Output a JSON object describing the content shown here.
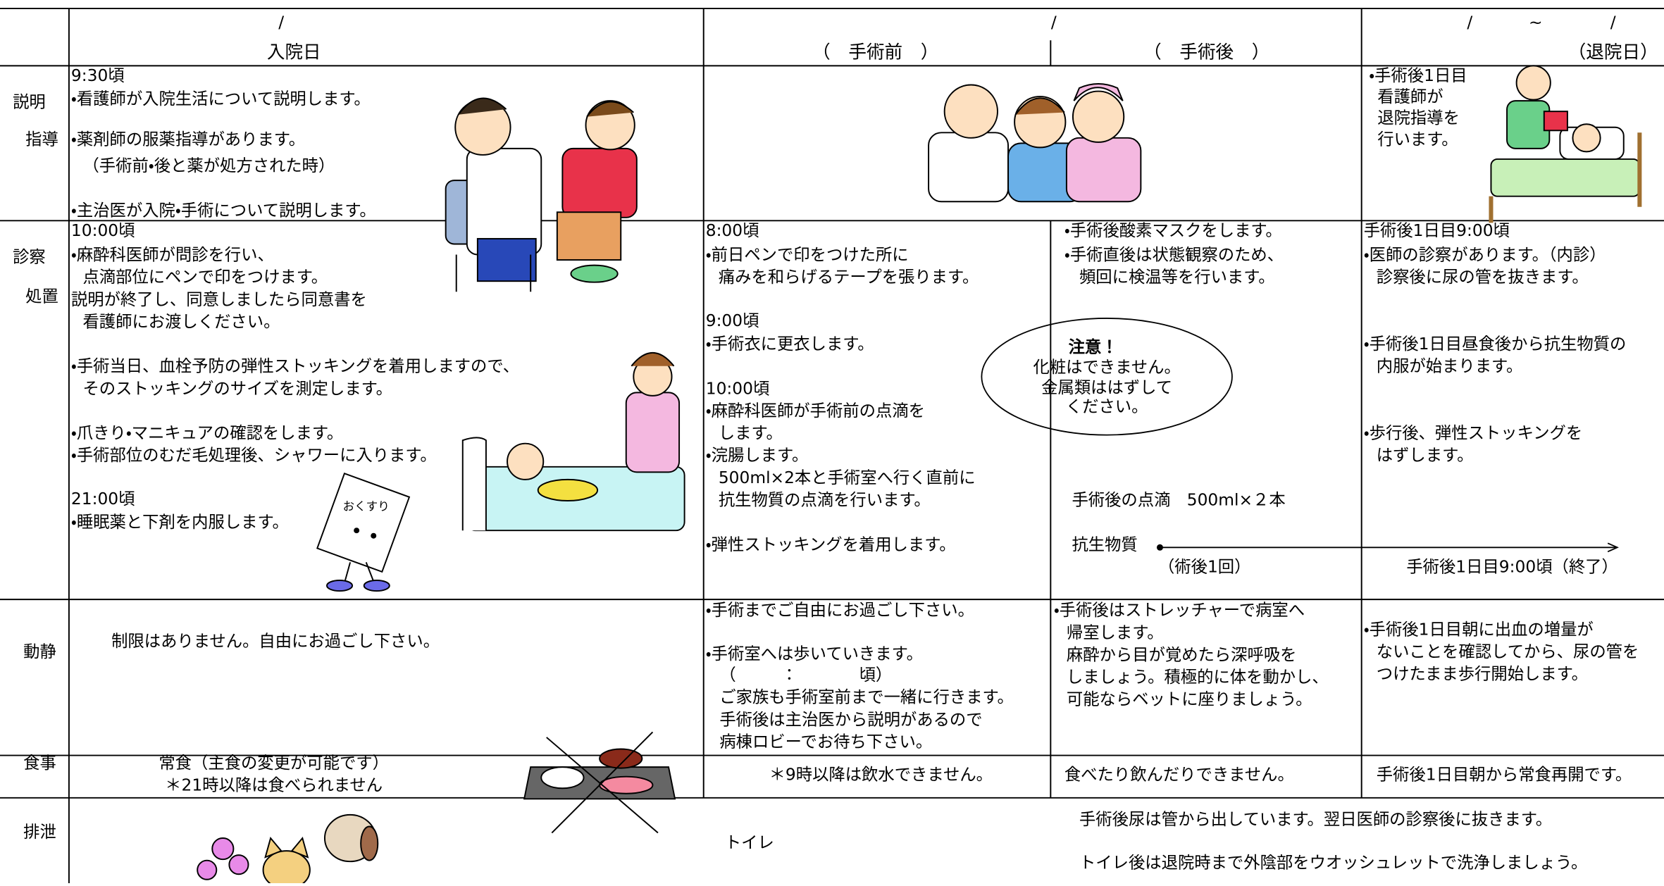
{
  "header": {
    "slash1": "/",
    "col1": "入院日",
    "slash2": "/",
    "col2a": "（　手術前　）",
    "col2b": "（　手術後　）",
    "slash3a": "/",
    "tilde": "~",
    "slash3b": "/",
    "col4": "（退院日）"
  },
  "explanation": {
    "label": [
      "説明",
      "指導"
    ],
    "c1": [
      "9:30頃",
      "・看護師が入院生活について説明します。",
      "・薬剤師の服薬指導があります。",
      "（手術前・後と薬が処方された時）",
      "・主治医が入院・手術について説明します。"
    ],
    "c4": [
      "・手術後1日目",
      "看護師が",
      "退院指導を",
      "行います。"
    ]
  },
  "examination": {
    "label": [
      "診察",
      "処置"
    ],
    "c1": [
      "10:00頃",
      "・麻酔科医師が問診を行い、",
      "点滴部位にペンで印をつけます。",
      "説明が終了し、同意しましたら同意書を",
      "看護師にお渡しください。",
      "・手術当日、血栓予防の弾性ストッキングを着用しますので、",
      "そのストッキングのサイズを測定します。",
      "・爪きり・マニキュアの確認をします。",
      "・手術部位のむだ毛処理後、シャワーに入ります。",
      "21:00頃",
      "・睡眠薬と下剤を内服します。"
    ],
    "sign": "おくすり",
    "c2": [
      "8:00頃",
      "・前日ペンで印をつけた所に",
      "痛みを和らげるテープを張ります。",
      "9:00頃",
      "・手術衣に更衣します。",
      "10:00頃",
      "・麻酔科医師が手術前の点滴を",
      "します。",
      "・浣腸します。",
      "500ml×2本と手術室へ行く直前に",
      "抗生物質の点滴を行います。",
      "・弾性ストッキングを着用します。"
    ],
    "c3": [
      "・手術後酸素マスクをします。",
      "・手術直後は状態観察のため、",
      "頻回に検温等を行います。"
    ],
    "note": [
      "注意！",
      "化粧はできません。",
      "金属類ははずして",
      "ください。"
    ],
    "drip": "手術後の点滴　500ml×２本",
    "antibiotic": "抗生物質",
    "once": "（術後1回）",
    "c4": [
      "手術後1日目9:00頃",
      "・医師の診察があります。（内診）",
      "診察後に尿の管を抜きます。",
      "・手術後1日目昼食後から抗生物質の",
      "内服が始まります。",
      "・歩行後、弾性ストッキングを",
      "はずします。"
    ],
    "end": "手術後1日目9:00頃（終了）"
  },
  "activity": {
    "label": "動静",
    "c1": "制限はありません。自由にお過ごし下さい。",
    "c2": [
      "・手術までご自由にお過ごし下さい。",
      "・手術室へは歩いていきます。",
      "（　　　：　　　　頃）",
      "ご家族も手術室前まで一緒に行きます。",
      "手術後は主治医から説明があるので",
      "病棟ロビーでお待ち下さい。"
    ],
    "c3": [
      "・手術後はストレッチャーで病室へ",
      "帰室します。",
      "麻酔から目が覚めたら深呼吸を",
      "しましょう。積極的に体を動かし、",
      "可能ならベットに座りましょう。"
    ],
    "c4": [
      "・手術後1日目朝に出血の増量が",
      "ないことを確認してから、尿の管を",
      "つけたまま歩行開始します。"
    ]
  },
  "meal": {
    "label": "食事",
    "c1": [
      "常食（主食の変更が可能です）",
      "＊21時以降は食べられません"
    ],
    "c2": "＊9時以降は飲水できません。",
    "c3": "食べたり飲んだりできません。",
    "c4": "手術後1日目朝から常食再開です。"
  },
  "excretion": {
    "label": "排泄",
    "c1": "トイレ",
    "c3": [
      "手術後尿は管から出しています。翌日医師の診察後に抜きます。",
      "トイレ後は退院時まで外陰部をウオッシュレットで洗浄しましょう。"
    ]
  }
}
